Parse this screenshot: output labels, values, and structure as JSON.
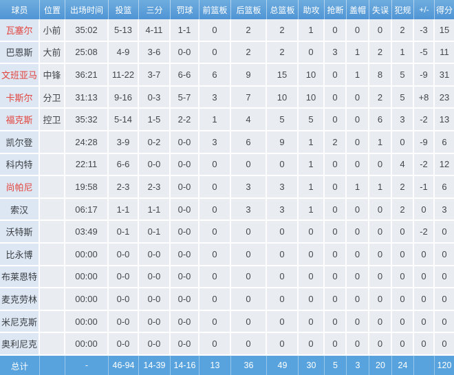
{
  "colors": {
    "header_top": "#6fadde",
    "header_bottom": "#4f94d5",
    "totals_bg": "#58a3de",
    "row_bg": "#e9edf2",
    "name_col_bg": "#dde7f3",
    "highlight_name_red": "#e2443d",
    "body_text": "#43474c"
  },
  "table": {
    "headers": [
      "球员",
      "位置",
      "出场时间",
      "投篮",
      "三分",
      "罚球",
      "前篮板",
      "后篮板",
      "总篮板",
      "助攻",
      "抢断",
      "盖帽",
      "失误",
      "犯规",
      "+/-",
      "得分"
    ],
    "rows": [
      {
        "name_red": true,
        "cells": [
          "瓦塞尔",
          "小前",
          "35:02",
          "5-13",
          "4-11",
          "1-1",
          "0",
          "2",
          "2",
          "1",
          "0",
          "0",
          "0",
          "2",
          "-3",
          "15"
        ]
      },
      {
        "name_red": false,
        "cells": [
          "巴恩斯",
          "大前",
          "25:08",
          "4-9",
          "3-6",
          "0-0",
          "0",
          "2",
          "2",
          "0",
          "3",
          "1",
          "2",
          "1",
          "-5",
          "11"
        ]
      },
      {
        "name_red": true,
        "cells": [
          "文班亚马",
          "中锋",
          "36:21",
          "11-22",
          "3-7",
          "6-6",
          "6",
          "9",
          "15",
          "10",
          "0",
          "1",
          "8",
          "5",
          "-9",
          "31"
        ]
      },
      {
        "name_red": true,
        "cells": [
          "卡斯尔",
          "分卫",
          "31:13",
          "9-16",
          "0-3",
          "5-7",
          "3",
          "7",
          "10",
          "10",
          "0",
          "0",
          "2",
          "5",
          "+8",
          "23"
        ]
      },
      {
        "name_red": true,
        "cells": [
          "福克斯",
          "控卫",
          "35:32",
          "5-14",
          "1-5",
          "2-2",
          "1",
          "4",
          "5",
          "5",
          "0",
          "0",
          "6",
          "3",
          "-2",
          "13"
        ]
      },
      {
        "name_red": false,
        "cells": [
          "凯尔登",
          "",
          "24:28",
          "3-9",
          "0-2",
          "0-0",
          "3",
          "6",
          "9",
          "1",
          "2",
          "0",
          "1",
          "0",
          "-9",
          "6"
        ]
      },
      {
        "name_red": false,
        "cells": [
          "科内特",
          "",
          "22:11",
          "6-6",
          "0-0",
          "0-0",
          "0",
          "0",
          "0",
          "1",
          "0",
          "0",
          "0",
          "4",
          "-2",
          "12"
        ]
      },
      {
        "name_red": true,
        "cells": [
          "尚帕尼",
          "",
          "19:58",
          "2-3",
          "2-3",
          "0-0",
          "0",
          "3",
          "3",
          "1",
          "0",
          "1",
          "1",
          "2",
          "-1",
          "6"
        ]
      },
      {
        "name_red": false,
        "cells": [
          "索汉",
          "",
          "06:17",
          "1-1",
          "1-1",
          "0-0",
          "0",
          "3",
          "3",
          "1",
          "0",
          "0",
          "0",
          "2",
          "0",
          "3"
        ]
      },
      {
        "name_red": false,
        "cells": [
          "沃特斯",
          "",
          "03:49",
          "0-1",
          "0-1",
          "0-0",
          "0",
          "0",
          "0",
          "0",
          "0",
          "0",
          "0",
          "0",
          "-2",
          "0"
        ]
      },
      {
        "name_red": false,
        "cells": [
          "比永博",
          "",
          "00:00",
          "0-0",
          "0-0",
          "0-0",
          "0",
          "0",
          "0",
          "0",
          "0",
          "0",
          "0",
          "0",
          "0",
          "0"
        ]
      },
      {
        "name_red": false,
        "cells": [
          "布莱恩特",
          "",
          "00:00",
          "0-0",
          "0-0",
          "0-0",
          "0",
          "0",
          "0",
          "0",
          "0",
          "0",
          "0",
          "0",
          "0",
          "0"
        ]
      },
      {
        "name_red": false,
        "cells": [
          "麦克劳林",
          "",
          "00:00",
          "0-0",
          "0-0",
          "0-0",
          "0",
          "0",
          "0",
          "0",
          "0",
          "0",
          "0",
          "0",
          "0",
          "0"
        ]
      },
      {
        "name_red": false,
        "cells": [
          "米尼克斯",
          "",
          "00:00",
          "0-0",
          "0-0",
          "0-0",
          "0",
          "0",
          "0",
          "0",
          "0",
          "0",
          "0",
          "0",
          "0",
          "0"
        ]
      },
      {
        "name_red": false,
        "cells": [
          "奥利尼克",
          "",
          "00:00",
          "0-0",
          "0-0",
          "0-0",
          "0",
          "0",
          "0",
          "0",
          "0",
          "0",
          "0",
          "0",
          "0",
          "0"
        ]
      }
    ],
    "totals": [
      "总计",
      "",
      "-",
      "46-94",
      "14-39",
      "14-16",
      "13",
      "36",
      "49",
      "30",
      "5",
      "3",
      "20",
      "24",
      "",
      "120"
    ]
  }
}
